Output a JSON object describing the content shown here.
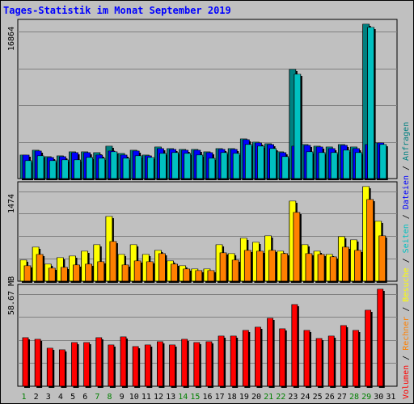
{
  "title": "Tages-Statistik im Monat September 2019",
  "colors": {
    "background": "#c0c0c0",
    "title": "#0000ff",
    "anfragen": "#008080",
    "dateien": "#0000ff",
    "seiten": "#00c0c0",
    "besuche": "#ffff00",
    "rechner": "#ff8000",
    "volumen": "#ff0000",
    "weekend_label": "#008000",
    "weekday_label": "#000000"
  },
  "chart_data": [
    {
      "type": "bar",
      "title": "Tages-Statistik im Monat September 2019",
      "ymax_label": "16864",
      "ylim": [
        0,
        16864
      ],
      "categories": [
        "1",
        "2",
        "3",
        "4",
        "5",
        "6",
        "7",
        "8",
        "9",
        "10",
        "11",
        "12",
        "13",
        "14",
        "15",
        "16",
        "17",
        "18",
        "19",
        "20",
        "21",
        "22",
        "23",
        "24",
        "25",
        "26",
        "27",
        "28",
        "29",
        "30",
        "31"
      ],
      "weekend_days": [
        "1",
        "7",
        "8",
        "14",
        "15",
        "21",
        "22",
        "28",
        "29"
      ],
      "series": [
        {
          "name": "Anfragen",
          "values": [
            2600,
            3100,
            2400,
            2500,
            2900,
            2900,
            2800,
            3500,
            2700,
            3100,
            2600,
            3400,
            3300,
            3200,
            3200,
            2900,
            3300,
            3300,
            4300,
            4000,
            3800,
            2900,
            11900,
            3700,
            3500,
            3400,
            3700,
            3400,
            16864,
            3900,
            0
          ]
        },
        {
          "name": "Dateien",
          "values": [
            2600,
            3000,
            2300,
            2400,
            2800,
            2800,
            2600,
            3000,
            2600,
            3000,
            2500,
            3300,
            3200,
            3100,
            3100,
            2800,
            3200,
            3200,
            4200,
            3900,
            3700,
            2800,
            3500,
            3600,
            3400,
            3300,
            3600,
            3300,
            3700,
            3900,
            0
          ]
        },
        {
          "name": "Seiten",
          "values": [
            1900,
            2500,
            1900,
            2000,
            2000,
            2300,
            2200,
            2900,
            2200,
            2500,
            2300,
            2700,
            2800,
            2700,
            2600,
            2200,
            2800,
            2700,
            3700,
            3500,
            3300,
            2400,
            11400,
            2900,
            2800,
            2800,
            3100,
            2800,
            16500,
            3700,
            0
          ]
        }
      ]
    },
    {
      "type": "bar",
      "ymax_label": "1474",
      "ylim": [
        0,
        1474
      ],
      "categories": [
        "1",
        "2",
        "3",
        "4",
        "5",
        "6",
        "7",
        "8",
        "9",
        "10",
        "11",
        "12",
        "13",
        "14",
        "15",
        "16",
        "17",
        "18",
        "19",
        "20",
        "21",
        "22",
        "23",
        "24",
        "25",
        "26",
        "27",
        "28",
        "29",
        "30",
        "31"
      ],
      "series": [
        {
          "name": "Besuche",
          "values": [
            330,
            530,
            270,
            360,
            390,
            470,
            570,
            1010,
            420,
            570,
            420,
            480,
            310,
            240,
            190,
            190,
            570,
            430,
            670,
            610,
            700,
            470,
            1250,
            570,
            460,
            420,
            690,
            640,
            1474,
            930,
            0
          ]
        },
        {
          "name": "Rechner",
          "values": [
            240,
            420,
            200,
            210,
            250,
            270,
            300,
            620,
            250,
            310,
            300,
            430,
            260,
            190,
            170,
            160,
            440,
            330,
            480,
            470,
            480,
            430,
            1070,
            430,
            420,
            380,
            530,
            480,
            1270,
            710,
            0
          ]
        }
      ]
    },
    {
      "type": "bar",
      "ymax_label": "58.67 MB",
      "ylim": [
        0,
        58.67
      ],
      "categories": [
        "1",
        "2",
        "3",
        "4",
        "5",
        "6",
        "7",
        "8",
        "9",
        "10",
        "11",
        "12",
        "13",
        "14",
        "15",
        "16",
        "17",
        "18",
        "19",
        "20",
        "21",
        "22",
        "23",
        "24",
        "25",
        "26",
        "27",
        "28",
        "29",
        "30",
        "31"
      ],
      "series": [
        {
          "name": "Volumen",
          "values": [
            29.3,
            28.3,
            23.1,
            22.0,
            26.2,
            26.2,
            29.3,
            25.1,
            29.9,
            24.1,
            25.1,
            26.7,
            25.1,
            28.3,
            26.2,
            26.7,
            30.4,
            30.4,
            33.5,
            35.6,
            40.9,
            34.6,
            49.2,
            33.5,
            28.8,
            30.4,
            36.7,
            33.5,
            46.1,
            58.67,
            0
          ]
        }
      ]
    }
  ],
  "right_legend": [
    {
      "text": "Volumen",
      "color": "#ff0000"
    },
    {
      "text": " / ",
      "color": "#000000"
    },
    {
      "text": "Rechner",
      "color": "#ff8000"
    },
    {
      "text": " / ",
      "color": "#000000"
    },
    {
      "text": "Besuche",
      "color": "#ffff00"
    },
    {
      "text": " / ",
      "color": "#000000"
    },
    {
      "text": "Seiten",
      "color": "#00c0c0"
    },
    {
      "text": " / ",
      "color": "#000000"
    },
    {
      "text": "Dateien",
      "color": "#0000ff"
    },
    {
      "text": " / ",
      "color": "#000000"
    },
    {
      "text": "Anfragen",
      "color": "#008080"
    }
  ]
}
